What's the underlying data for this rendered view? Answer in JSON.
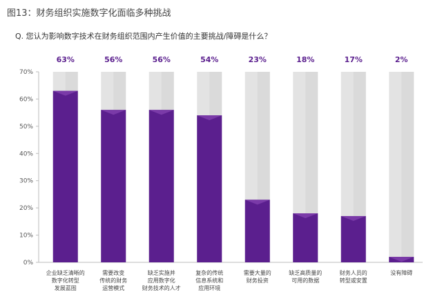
{
  "figure_title": "图13：财务组织实施数字化面临多种挑战",
  "question": "Q. 您认为影响数字技术在财务组织范围内产生价值的主要挑战/障碍是什么？",
  "colors": {
    "bar": "#5b1f8e",
    "bar_top": "#7a3aa8",
    "track": "#e3e3e3",
    "track_side": "#d2d2d2",
    "axis": "#bbbbbb"
  },
  "chart_data": {
    "type": "bar",
    "title": "",
    "xlabel": "",
    "ylabel": "",
    "ylim": [
      0,
      70
    ],
    "yticks": [
      "0%",
      "10%",
      "20%",
      "30%",
      "40%",
      "50%",
      "60%",
      "70%"
    ],
    "categories": [
      [
        "企业缺乏清晰的",
        "数字化转型",
        "发展蓝图"
      ],
      [
        "需要改变",
        "传统的财务",
        "运营模式"
      ],
      [
        "缺乏实施并",
        "应用数字化",
        "财务技术的人才"
      ],
      [
        "复杂的传统",
        "信息系统和",
        "应用环境"
      ],
      [
        "需要大量的",
        "财务投资"
      ],
      [
        "缺乏高质量的",
        "可用的数据"
      ],
      [
        "财务人员的",
        "转型或安置"
      ],
      [
        "没有障碍"
      ]
    ],
    "values": [
      63,
      56,
      56,
      54,
      23,
      18,
      17,
      2
    ],
    "value_labels": [
      "63%",
      "56%",
      "56%",
      "54%",
      "23%",
      "18%",
      "17%",
      "2%"
    ]
  }
}
